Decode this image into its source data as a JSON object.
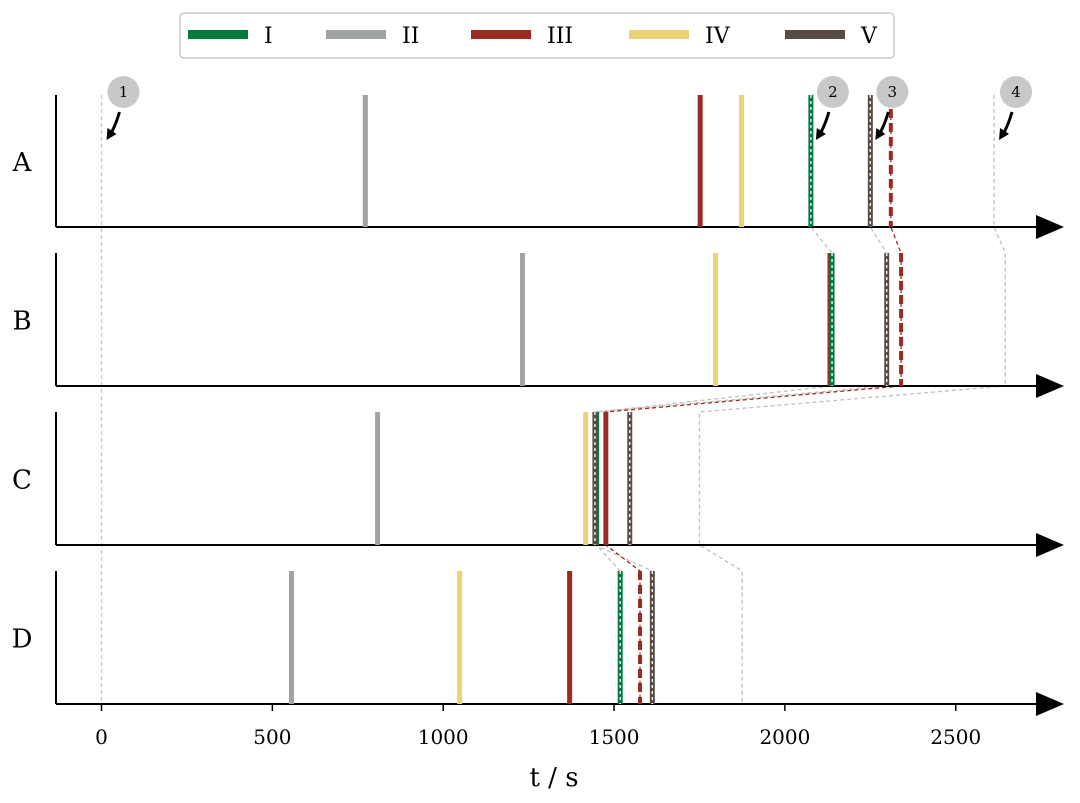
{
  "chart_data": {
    "type": "event-timeline",
    "xlabel": "t / s",
    "xlim": [
      -130,
      2780
    ],
    "xticks": [
      0,
      500,
      1000,
      1500,
      2000,
      2500
    ],
    "rows": [
      "A",
      "B",
      "C",
      "D"
    ],
    "legend_location": "top-center",
    "series": [
      {
        "name": "I",
        "color": "#007a3d",
        "style": "hatched"
      },
      {
        "name": "II",
        "color": "#9fa3a4",
        "style": "solid"
      },
      {
        "name": "III",
        "color": "#9b2a23",
        "style": "solid"
      },
      {
        "name": "IV",
        "color": "#ecd274",
        "style": "solid"
      },
      {
        "name": "V",
        "color": "#584c45",
        "style": "hatched"
      }
    ],
    "events": {
      "A": [
        {
          "series": "II",
          "t": 772
        },
        {
          "series": "III",
          "t": 1752
        },
        {
          "series": "IV",
          "t": 1873
        },
        {
          "series": "I",
          "t": 2076
        },
        {
          "series": "V",
          "t": 2250
        },
        {
          "series": "III",
          "t": 2310,
          "dashed": true
        }
      ],
      "B": [
        {
          "series": "II",
          "t": 1232
        },
        {
          "series": "IV",
          "t": 1797
        },
        {
          "series": "III",
          "t": 2132
        },
        {
          "series": "I",
          "t": 2138
        },
        {
          "series": "V",
          "t": 2298
        },
        {
          "series": "III",
          "t": 2340,
          "dashed": true
        }
      ],
      "C": [
        {
          "series": "II",
          "t": 808
        },
        {
          "series": "IV",
          "t": 1417
        },
        {
          "series": "I",
          "t": 1449
        },
        {
          "series": "V",
          "t": 1444
        },
        {
          "series": "III",
          "t": 1476
        },
        {
          "series": "V",
          "t": 1546
        }
      ],
      "D": [
        {
          "series": "II",
          "t": 556
        },
        {
          "series": "IV",
          "t": 1048
        },
        {
          "series": "III",
          "t": 1370
        },
        {
          "series": "I",
          "t": 1518
        },
        {
          "series": "III",
          "t": 1576,
          "dashed": true
        },
        {
          "series": "V",
          "t": 1612
        }
      ]
    },
    "markers": [
      {
        "label": "1",
        "t": [
          0,
          0,
          0,
          0
        ]
      },
      {
        "label": "2",
        "t": [
          2076,
          2138,
          1449,
          1518
        ],
        "color": "#9b2a23"
      },
      {
        "label": "3",
        "t": [
          2250,
          2298,
          1444,
          1612
        ]
      },
      {
        "label": "4",
        "t": [
          2612,
          2645,
          1750,
          1875
        ]
      }
    ],
    "connectors": [
      {
        "t": [
          2076,
          2138,
          1449,
          1518
        ],
        "color": "#c0c0c0",
        "dash": "4,3"
      },
      {
        "t": [
          2250,
          2298,
          1444,
          1612
        ],
        "color": "#c0c0c0",
        "dash": "4,3"
      },
      {
        "t": [
          2310,
          2340,
          1476,
          1576
        ],
        "color": "#9b2a23",
        "dash": "4,3"
      },
      {
        "t": [
          2612,
          2645,
          1750,
          1875
        ],
        "color": "#c0c0c0",
        "dash": "4,3"
      },
      {
        "t": [
          0,
          0,
          0,
          0
        ],
        "color": "#c8c8c8",
        "dash": "4,3"
      }
    ]
  }
}
